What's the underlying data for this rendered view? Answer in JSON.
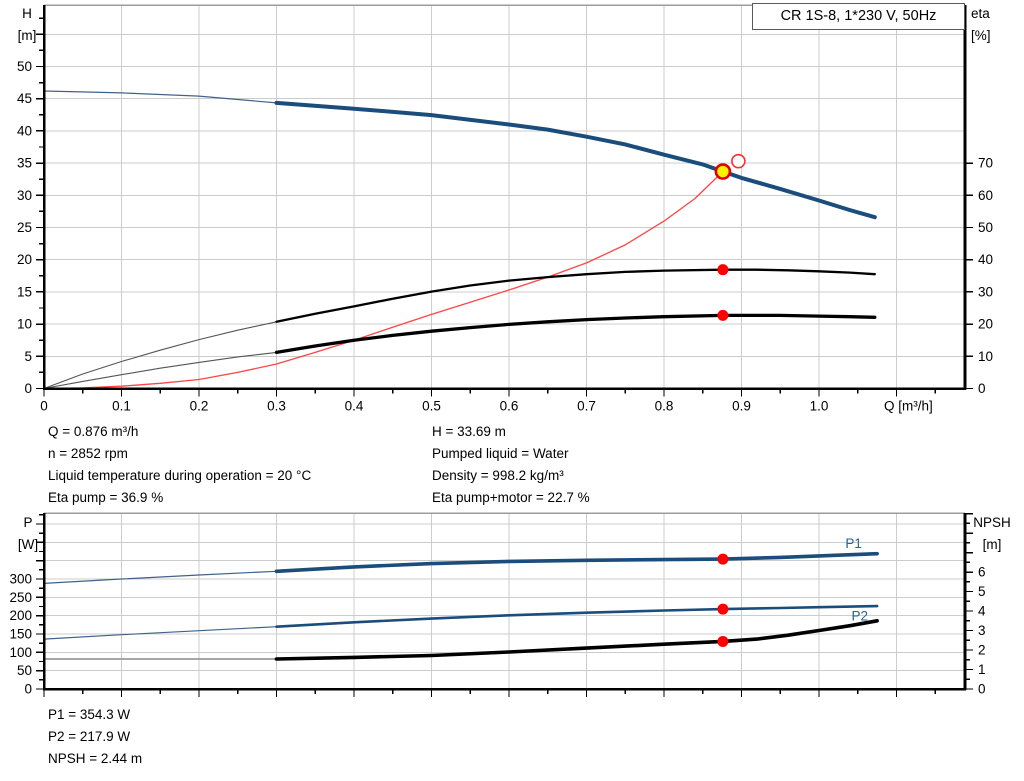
{
  "title_box": "CR 1S-8, 1*230 V, 50Hz",
  "info_left": [
    "Q = 0.876 m³/h",
    "n = 2852 rpm",
    "Liquid temperature during operation = 20 °C",
    "Eta pump = 36.9 %"
  ],
  "info_right": [
    "H = 33.69 m",
    "Pumped liquid = Water",
    "Density = 998.2 kg/m³",
    "Eta pump+motor = 22.7 %"
  ],
  "info_bottom": [
    "P1 = 354.3 W",
    "P2 = 217.9 W",
    "NPSH = 2.44 m"
  ],
  "colors": {
    "curve_blue": "#1A4D7C",
    "thin_blue": "#41618B",
    "red": "#FF0000",
    "red_line": "#FF4444",
    "yellow": "#FFF200",
    "black": "#000000",
    "thin_black": "#555555",
    "thin_gray": "#8A8A8A",
    "grid": "#CCCCCC",
    "border_gray": "#9C9C9C",
    "label_blue": "#2A6099"
  },
  "chart_data": [
    {
      "type": "line",
      "title": "CR 1S-8, 1*230 V, 50Hz — QH and efficiency curves",
      "x_axis": {
        "label": "Q [m³/h]",
        "range": [
          0,
          1.1884
        ],
        "major_ticks": [
          0,
          0.1,
          0.2,
          0.3,
          0.4,
          0.5,
          0.6,
          0.7,
          0.8,
          0.9,
          1.0,
          1.1
        ],
        "minor_ticks": [
          0.05,
          0.15,
          0.25,
          0.35,
          0.45,
          0.55,
          0.65,
          0.75,
          0.85,
          0.95,
          1.05,
          1.15
        ],
        "tick_labels": [
          "0",
          "0.1",
          "0.2",
          "0.3",
          "0.4",
          "0.5",
          "0.6",
          "0.7",
          "0.8",
          "0.9",
          "1.0"
        ]
      },
      "left_axis": {
        "label_lines": [
          "H",
          "[m]"
        ],
        "range": [
          0,
          59.55
        ],
        "major_ticks": [
          0,
          5,
          10,
          15,
          20,
          25,
          30,
          35,
          40,
          45,
          50,
          55
        ],
        "minor_ticks": [
          2.5,
          7.5,
          12.5,
          17.5,
          22.5,
          27.5,
          32.5,
          37.5,
          42.5,
          47.5,
          52.5,
          57.5
        ],
        "tick_labels": [
          "0",
          "5",
          "10",
          "15",
          "20",
          "25",
          "30",
          "35",
          "40",
          "45",
          "50"
        ],
        "grid": [
          5,
          10,
          15,
          20,
          25,
          30,
          35,
          40,
          45,
          50,
          55
        ]
      },
      "right_axis": {
        "label_lines": [
          "eta",
          "[%]"
        ],
        "range": [
          0,
          119.1
        ],
        "major_ticks": [
          0,
          10,
          20,
          30,
          40,
          50,
          60,
          70
        ],
        "minor_ticks": [],
        "tick_labels": [
          "0",
          "10",
          "20",
          "30",
          "40",
          "50",
          "60",
          "70"
        ]
      },
      "series": [
        {
          "name": "system-curve",
          "axis": "left",
          "color": "#FF4444",
          "width": 1.3,
          "points": [
            [
              0,
              0
            ],
            [
              0.05,
              0.1
            ],
            [
              0.1,
              0.35
            ],
            [
              0.15,
              0.8
            ],
            [
              0.2,
              1.4
            ],
            [
              0.25,
              2.5
            ],
            [
              0.3,
              3.8
            ],
            [
              0.35,
              5.6
            ],
            [
              0.4,
              7.5
            ],
            [
              0.45,
              9.5
            ],
            [
              0.5,
              11.5
            ],
            [
              0.55,
              13.4
            ],
            [
              0.6,
              15.3
            ],
            [
              0.65,
              17.3
            ],
            [
              0.7,
              19.5
            ],
            [
              0.75,
              22.3
            ],
            [
              0.8,
              26.0
            ],
            [
              0.84,
              29.5
            ],
            [
              0.876,
              33.69
            ]
          ]
        },
        {
          "name": "eta-pump-curve",
          "axis": "right",
          "color": "#000000",
          "width": 2.3,
          "thin_color": "#555555",
          "thin_width": 1.1,
          "points_thin": [
            [
              0,
              0
            ],
            [
              0.05,
              4.5
            ],
            [
              0.1,
              8.4
            ],
            [
              0.15,
              11.9
            ],
            [
              0.2,
              15.2
            ],
            [
              0.25,
              18.1
            ],
            [
              0.3,
              20.7
            ]
          ],
          "points": [
            [
              0.3,
              20.7
            ],
            [
              0.35,
              23.2
            ],
            [
              0.4,
              25.5
            ],
            [
              0.45,
              27.9
            ],
            [
              0.5,
              30.1
            ],
            [
              0.55,
              32.0
            ],
            [
              0.6,
              33.5
            ],
            [
              0.65,
              34.6
            ],
            [
              0.7,
              35.5
            ],
            [
              0.75,
              36.2
            ],
            [
              0.8,
              36.6
            ],
            [
              0.876,
              36.9
            ],
            [
              0.92,
              36.9
            ],
            [
              0.96,
              36.7
            ],
            [
              1.0,
              36.4
            ],
            [
              1.04,
              36.0
            ],
            [
              1.072,
              35.5
            ]
          ]
        },
        {
          "name": "eta-pump-motor-curve",
          "axis": "right",
          "color": "#000000",
          "width": 3.3,
          "thin_color": "#555555",
          "thin_width": 1.1,
          "points_thin": [
            [
              0,
              0
            ],
            [
              0.05,
              2.2
            ],
            [
              0.1,
              4.3
            ],
            [
              0.15,
              6.3
            ],
            [
              0.2,
              8.1
            ],
            [
              0.25,
              9.8
            ],
            [
              0.3,
              11.2
            ]
          ],
          "points": [
            [
              0.3,
              11.2
            ],
            [
              0.35,
              13.2
            ],
            [
              0.4,
              15.0
            ],
            [
              0.45,
              16.5
            ],
            [
              0.5,
              17.8
            ],
            [
              0.55,
              18.9
            ],
            [
              0.6,
              19.9
            ],
            [
              0.65,
              20.7
            ],
            [
              0.7,
              21.4
            ],
            [
              0.75,
              21.9
            ],
            [
              0.8,
              22.3
            ],
            [
              0.876,
              22.7
            ],
            [
              0.95,
              22.7
            ],
            [
              1.0,
              22.5
            ],
            [
              1.04,
              22.3
            ],
            [
              1.072,
              22.1
            ]
          ]
        },
        {
          "name": "qh-curve",
          "axis": "left",
          "color": "#1A4D7C",
          "width": 4,
          "thin_color": "#41618B",
          "thin_width": 1.2,
          "points_thin": [
            [
              0,
              46.2
            ],
            [
              0.1,
              45.9
            ],
            [
              0.2,
              45.4
            ],
            [
              0.3,
              44.35
            ]
          ],
          "points": [
            [
              0.3,
              44.35
            ],
            [
              0.4,
              43.45
            ],
            [
              0.5,
              42.45
            ],
            [
              0.6,
              41.0
            ],
            [
              0.65,
              40.2
            ],
            [
              0.7,
              39.1
            ],
            [
              0.75,
              37.9
            ],
            [
              0.8,
              36.3
            ],
            [
              0.85,
              34.8
            ],
            [
              0.876,
              33.69
            ],
            [
              0.9,
              32.7
            ],
            [
              0.95,
              31.0
            ],
            [
              1.0,
              29.2
            ],
            [
              1.04,
              27.7
            ],
            [
              1.072,
              26.6
            ]
          ]
        }
      ],
      "markers": [
        {
          "name": "eta-pump-duty-dot",
          "style": "red",
          "axis": "right",
          "q": 0.876,
          "value": 36.9
        },
        {
          "name": "eta-pump-motor-duty-dot",
          "style": "red",
          "axis": "right",
          "q": 0.876,
          "value": 22.7
        },
        {
          "name": "requested-duty-point",
          "style": "open",
          "axis": "left",
          "q": 0.896,
          "value": 35.3
        },
        {
          "name": "duty-point",
          "style": "yellow",
          "axis": "left",
          "q": 0.876,
          "value": 33.69,
          "interactable": true
        }
      ],
      "annotations": []
    },
    {
      "type": "line",
      "title": "Power and NPSH curves",
      "x_axis": {
        "label": "",
        "range": [
          0,
          1.1884
        ],
        "major_ticks": [
          0,
          0.1,
          0.2,
          0.3,
          0.4,
          0.5,
          0.6,
          0.7,
          0.8,
          0.9,
          1.0,
          1.1
        ],
        "minor_ticks": [
          0.05,
          0.15,
          0.25,
          0.35,
          0.45,
          0.55,
          0.65,
          0.75,
          0.85,
          0.95,
          1.05,
          1.15
        ],
        "tick_labels": []
      },
      "left_axis": {
        "label_lines": [
          "P",
          "[W]"
        ],
        "range": [
          0,
          480
        ],
        "major_ticks": [
          0,
          50,
          100,
          150,
          200,
          250,
          300,
          350,
          400,
          450
        ],
        "minor_ticks": [
          25,
          75,
          125,
          175,
          225,
          275,
          325,
          375,
          425,
          475
        ],
        "tick_labels": [
          "0",
          "50",
          "100",
          "150",
          "200",
          "250",
          "300"
        ],
        "grid": [
          50,
          100,
          150,
          200,
          250,
          300,
          350,
          400,
          450
        ]
      },
      "right_axis": {
        "label_lines": [
          "NPSH",
          "[m]"
        ],
        "range": [
          0,
          9.03
        ],
        "major_ticks": [
          0,
          1,
          2,
          3,
          4,
          5,
          6,
          7,
          8,
          9
        ],
        "minor_ticks": [
          0.5,
          1.5,
          2.5,
          3.5,
          4.5,
          5.5,
          6.5,
          7.5,
          8.5
        ],
        "tick_labels": [
          "0",
          "1",
          "2",
          "3",
          "4",
          "5",
          "6"
        ]
      },
      "series": [
        {
          "name": "npsh-curve",
          "axis": "right",
          "color": "#000000",
          "width": 3.6,
          "thin_color": "#8A8A8A",
          "thin_width": 1.5,
          "points_thin": [
            [
              0,
              1.54
            ],
            [
              0.3,
              1.54
            ]
          ],
          "points": [
            [
              0.3,
              1.54
            ],
            [
              0.4,
              1.62
            ],
            [
              0.5,
              1.72
            ],
            [
              0.6,
              1.9
            ],
            [
              0.7,
              2.1
            ],
            [
              0.8,
              2.3
            ],
            [
              0.876,
              2.44
            ],
            [
              0.92,
              2.56
            ],
            [
              0.96,
              2.76
            ],
            [
              1.0,
              3.0
            ],
            [
              1.04,
              3.25
            ],
            [
              1.075,
              3.5
            ]
          ]
        },
        {
          "name": "p2-curve",
          "axis": "left",
          "color": "#1A4D7C",
          "width": 2.6,
          "thin_color": "#41618B",
          "thin_width": 1.2,
          "points_thin": [
            [
              0,
              136
            ],
            [
              0.1,
              148
            ],
            [
              0.2,
              159
            ],
            [
              0.3,
              170
            ]
          ],
          "points": [
            [
              0.3,
              170
            ],
            [
              0.4,
              182
            ],
            [
              0.5,
              192
            ],
            [
              0.6,
              201
            ],
            [
              0.7,
              208
            ],
            [
              0.8,
              214
            ],
            [
              0.876,
              217.9
            ],
            [
              0.95,
              221
            ],
            [
              1.0,
              223
            ],
            [
              1.075,
              226
            ]
          ]
        },
        {
          "name": "p1-curve",
          "axis": "left",
          "color": "#1A4D7C",
          "width": 3.6,
          "thin_color": "#41618B",
          "thin_width": 1.2,
          "points_thin": [
            [
              0,
              288
            ],
            [
              0.1,
              300
            ],
            [
              0.2,
              311
            ],
            [
              0.3,
              321
            ]
          ],
          "points": [
            [
              0.3,
              321
            ],
            [
              0.4,
              333
            ],
            [
              0.5,
              342
            ],
            [
              0.6,
              348
            ],
            [
              0.7,
              351
            ],
            [
              0.8,
              353
            ],
            [
              0.876,
              354.3
            ],
            [
              0.95,
              359
            ],
            [
              1.0,
              363
            ],
            [
              1.075,
              369
            ]
          ]
        }
      ],
      "markers": [
        {
          "name": "p1-duty-dot",
          "style": "red",
          "axis": "left",
          "q": 0.876,
          "value": 354.3
        },
        {
          "name": "p2-duty-dot",
          "style": "red",
          "axis": "left",
          "q": 0.876,
          "value": 217.9
        },
        {
          "name": "npsh-duty-dot",
          "style": "red",
          "axis": "right",
          "q": 0.876,
          "value": 2.44
        }
      ],
      "annotations": [
        {
          "text": "P1",
          "axis": "left",
          "q": 1.034,
          "value": 398,
          "color": "#2A6099"
        },
        {
          "text": "P2",
          "axis": "left",
          "q": 1.042,
          "value": 200,
          "color": "#2A6099"
        }
      ]
    }
  ]
}
